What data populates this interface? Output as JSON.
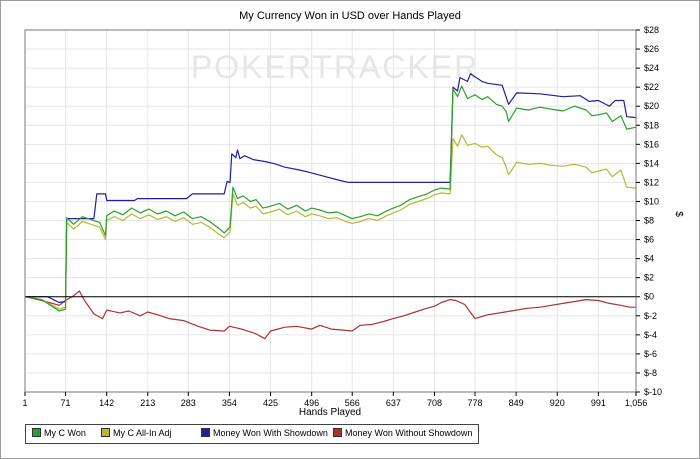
{
  "chart_data": {
    "type": "line",
    "title": "My Currency Won in USD over Hands Played",
    "watermark": "POKERTRACKER",
    "xlabel": "Hands Played",
    "ylabel": "$",
    "xlim": [
      1,
      1056
    ],
    "ylim": [
      -10,
      28
    ],
    "x_ticks": [
      "1",
      "71",
      "142",
      "213",
      "283",
      "354",
      "425",
      "496",
      "566",
      "637",
      "708",
      "778",
      "849",
      "920",
      "991",
      "1,056"
    ],
    "y_ticks": [
      "$28",
      "$26",
      "$24",
      "$22",
      "$20",
      "$18",
      "$16",
      "$14",
      "$12",
      "$10",
      "$8",
      "$6",
      "$4",
      "$2",
      "$0",
      "$-2",
      "$-4",
      "$-6",
      "$-8",
      "$-10"
    ],
    "grid": true,
    "legend_position": "bottom-left",
    "series": [
      {
        "name": "My C Won",
        "color": "#2aa02a",
        "points": [
          [
            1,
            0
          ],
          [
            30,
            -0.3
          ],
          [
            60,
            -1.5
          ],
          [
            71,
            -1.3
          ],
          [
            73,
            8.3
          ],
          [
            85,
            7.6
          ],
          [
            100,
            8.4
          ],
          [
            115,
            8.1
          ],
          [
            130,
            7.8
          ],
          [
            140,
            6.4
          ],
          [
            142,
            8.5
          ],
          [
            155,
            9.0
          ],
          [
            170,
            8.6
          ],
          [
            185,
            9.3
          ],
          [
            200,
            8.8
          ],
          [
            215,
            9.2
          ],
          [
            230,
            8.7
          ],
          [
            245,
            9.0
          ],
          [
            260,
            8.5
          ],
          [
            275,
            8.9
          ],
          [
            290,
            8.2
          ],
          [
            305,
            8.4
          ],
          [
            320,
            7.9
          ],
          [
            335,
            7.2
          ],
          [
            345,
            6.7
          ],
          [
            355,
            7.3
          ],
          [
            360,
            11.5
          ],
          [
            368,
            10.3
          ],
          [
            378,
            10.6
          ],
          [
            390,
            10.0
          ],
          [
            400,
            10.2
          ],
          [
            412,
            9.3
          ],
          [
            425,
            9.5
          ],
          [
            440,
            9.8
          ],
          [
            455,
            9.2
          ],
          [
            470,
            9.6
          ],
          [
            485,
            9.0
          ],
          [
            496,
            9.3
          ],
          [
            510,
            9.1
          ],
          [
            525,
            8.8
          ],
          [
            540,
            8.9
          ],
          [
            555,
            8.5
          ],
          [
            566,
            8.2
          ],
          [
            580,
            8.4
          ],
          [
            595,
            8.7
          ],
          [
            610,
            8.5
          ],
          [
            625,
            9.0
          ],
          [
            637,
            9.3
          ],
          [
            650,
            9.6
          ],
          [
            665,
            10.2
          ],
          [
            680,
            10.5
          ],
          [
            695,
            10.8
          ],
          [
            708,
            11.2
          ],
          [
            720,
            11.4
          ],
          [
            735,
            11.3
          ],
          [
            740,
            21.8
          ],
          [
            748,
            21.0
          ],
          [
            755,
            22.1
          ],
          [
            765,
            20.8
          ],
          [
            778,
            21.2
          ],
          [
            790,
            20.7
          ],
          [
            800,
            21.0
          ],
          [
            815,
            20.2
          ],
          [
            825,
            20.0
          ],
          [
            832,
            19.4
          ],
          [
            836,
            18.4
          ],
          [
            850,
            19.8
          ],
          [
            870,
            19.6
          ],
          [
            890,
            19.9
          ],
          [
            910,
            19.7
          ],
          [
            930,
            19.5
          ],
          [
            950,
            20.0
          ],
          [
            970,
            19.6
          ],
          [
            980,
            19.0
          ],
          [
            991,
            19.1
          ],
          [
            1005,
            19.3
          ],
          [
            1015,
            18.4
          ],
          [
            1030,
            19.0
          ],
          [
            1040,
            17.6
          ],
          [
            1056,
            17.8
          ]
        ]
      },
      {
        "name": "My C All-In Adj",
        "color": "#b8b832",
        "points": [
          [
            1,
            0
          ],
          [
            30,
            -0.3
          ],
          [
            60,
            -1.3
          ],
          [
            71,
            -1.1
          ],
          [
            73,
            7.8
          ],
          [
            85,
            7.1
          ],
          [
            100,
            7.9
          ],
          [
            115,
            7.6
          ],
          [
            130,
            7.3
          ],
          [
            140,
            6.0
          ],
          [
            142,
            8.0
          ],
          [
            155,
            8.4
          ],
          [
            170,
            8.0
          ],
          [
            185,
            8.7
          ],
          [
            200,
            8.2
          ],
          [
            215,
            8.6
          ],
          [
            230,
            8.1
          ],
          [
            245,
            8.4
          ],
          [
            260,
            7.9
          ],
          [
            275,
            8.3
          ],
          [
            290,
            7.6
          ],
          [
            305,
            7.8
          ],
          [
            320,
            7.3
          ],
          [
            335,
            6.6
          ],
          [
            345,
            6.2
          ],
          [
            355,
            6.8
          ],
          [
            360,
            10.8
          ],
          [
            368,
            9.6
          ],
          [
            378,
            9.9
          ],
          [
            390,
            9.3
          ],
          [
            400,
            9.5
          ],
          [
            412,
            8.7
          ],
          [
            425,
            8.9
          ],
          [
            440,
            9.2
          ],
          [
            455,
            8.6
          ],
          [
            470,
            9.0
          ],
          [
            485,
            8.4
          ],
          [
            496,
            8.7
          ],
          [
            510,
            8.5
          ],
          [
            525,
            8.2
          ],
          [
            540,
            8.3
          ],
          [
            555,
            7.9
          ],
          [
            566,
            7.7
          ],
          [
            580,
            7.9
          ],
          [
            595,
            8.2
          ],
          [
            610,
            8.0
          ],
          [
            625,
            8.5
          ],
          [
            637,
            8.8
          ],
          [
            650,
            9.1
          ],
          [
            665,
            9.7
          ],
          [
            680,
            10.0
          ],
          [
            695,
            10.3
          ],
          [
            708,
            10.7
          ],
          [
            720,
            10.9
          ],
          [
            735,
            10.8
          ],
          [
            740,
            16.6
          ],
          [
            748,
            15.8
          ],
          [
            755,
            17.0
          ],
          [
            765,
            15.9
          ],
          [
            778,
            16.1
          ],
          [
            790,
            15.7
          ],
          [
            800,
            15.8
          ],
          [
            815,
            14.9
          ],
          [
            825,
            14.6
          ],
          [
            832,
            13.6
          ],
          [
            836,
            12.8
          ],
          [
            850,
            14.1
          ],
          [
            870,
            13.9
          ],
          [
            890,
            14.0
          ],
          [
            910,
            13.8
          ],
          [
            930,
            13.7
          ],
          [
            950,
            13.9
          ],
          [
            970,
            13.6
          ],
          [
            980,
            13.0
          ],
          [
            991,
            13.2
          ],
          [
            1005,
            13.4
          ],
          [
            1015,
            12.6
          ],
          [
            1030,
            13.3
          ],
          [
            1040,
            11.5
          ],
          [
            1056,
            11.4
          ]
        ]
      },
      {
        "name": "Money Won With Showdown",
        "color": "#1f1fa0",
        "points": [
          [
            1,
            0
          ],
          [
            40,
            0
          ],
          [
            60,
            -0.6
          ],
          [
            71,
            -0.5
          ],
          [
            73,
            8.2
          ],
          [
            120,
            8.2
          ],
          [
            125,
            10.8
          ],
          [
            140,
            10.8
          ],
          [
            142,
            10.1
          ],
          [
            190,
            10.1
          ],
          [
            195,
            10.3
          ],
          [
            280,
            10.3
          ],
          [
            290,
            10.8
          ],
          [
            345,
            10.8
          ],
          [
            350,
            12.1
          ],
          [
            355,
            12.0
          ],
          [
            358,
            15.0
          ],
          [
            365,
            14.6
          ],
          [
            368,
            15.4
          ],
          [
            372,
            14.5
          ],
          [
            380,
            14.8
          ],
          [
            395,
            14.4
          ],
          [
            415,
            14.2
          ],
          [
            430,
            14.0
          ],
          [
            450,
            13.6
          ],
          [
            475,
            13.3
          ],
          [
            496,
            13.0
          ],
          [
            520,
            12.6
          ],
          [
            545,
            12.2
          ],
          [
            560,
            12.0
          ],
          [
            580,
            12.0
          ],
          [
            637,
            12.0
          ],
          [
            700,
            12.0
          ],
          [
            735,
            12.0
          ],
          [
            740,
            22.0
          ],
          [
            748,
            21.6
          ],
          [
            752,
            23.0
          ],
          [
            765,
            22.6
          ],
          [
            770,
            23.4
          ],
          [
            790,
            22.6
          ],
          [
            800,
            22.4
          ],
          [
            825,
            22.2
          ],
          [
            832,
            20.9
          ],
          [
            836,
            20.2
          ],
          [
            850,
            21.4
          ],
          [
            890,
            21.3
          ],
          [
            930,
            21.0
          ],
          [
            960,
            21.1
          ],
          [
            975,
            20.5
          ],
          [
            991,
            20.6
          ],
          [
            1010,
            20.0
          ],
          [
            1020,
            20.6
          ],
          [
            1035,
            20.6
          ],
          [
            1040,
            18.9
          ],
          [
            1056,
            18.8
          ]
        ]
      },
      {
        "name": "Money Won Without Showdown",
        "color": "#b03030",
        "points": [
          [
            1,
            0
          ],
          [
            30,
            -0.4
          ],
          [
            60,
            -0.9
          ],
          [
            71,
            -0.4
          ],
          [
            85,
            0.1
          ],
          [
            95,
            0.6
          ],
          [
            105,
            -0.5
          ],
          [
            120,
            -1.8
          ],
          [
            135,
            -2.3
          ],
          [
            142,
            -1.4
          ],
          [
            165,
            -1.7
          ],
          [
            180,
            -1.5
          ],
          [
            200,
            -2.0
          ],
          [
            213,
            -1.6
          ],
          [
            230,
            -1.9
          ],
          [
            250,
            -2.3
          ],
          [
            275,
            -2.5
          ],
          [
            300,
            -3.1
          ],
          [
            320,
            -3.5
          ],
          [
            345,
            -3.6
          ],
          [
            354,
            -3.1
          ],
          [
            375,
            -3.4
          ],
          [
            400,
            -3.9
          ],
          [
            415,
            -4.4
          ],
          [
            425,
            -3.6
          ],
          [
            450,
            -3.2
          ],
          [
            470,
            -3.1
          ],
          [
            496,
            -3.4
          ],
          [
            510,
            -3.0
          ],
          [
            530,
            -3.4
          ],
          [
            550,
            -3.5
          ],
          [
            566,
            -3.6
          ],
          [
            580,
            -3.0
          ],
          [
            600,
            -2.9
          ],
          [
            620,
            -2.6
          ],
          [
            637,
            -2.3
          ],
          [
            655,
            -2.0
          ],
          [
            675,
            -1.6
          ],
          [
            695,
            -1.2
          ],
          [
            708,
            -1.0
          ],
          [
            720,
            -0.6
          ],
          [
            735,
            -0.3
          ],
          [
            745,
            -0.4
          ],
          [
            760,
            -0.8
          ],
          [
            778,
            -2.3
          ],
          [
            800,
            -1.9
          ],
          [
            830,
            -1.6
          ],
          [
            849,
            -1.4
          ],
          [
            870,
            -1.2
          ],
          [
            890,
            -1.1
          ],
          [
            910,
            -0.9
          ],
          [
            930,
            -0.7
          ],
          [
            950,
            -0.5
          ],
          [
            970,
            -0.3
          ],
          [
            991,
            -0.4
          ],
          [
            1010,
            -0.7
          ],
          [
            1030,
            -0.9
          ],
          [
            1045,
            -1.1
          ],
          [
            1056,
            -1.1
          ]
        ]
      }
    ]
  }
}
